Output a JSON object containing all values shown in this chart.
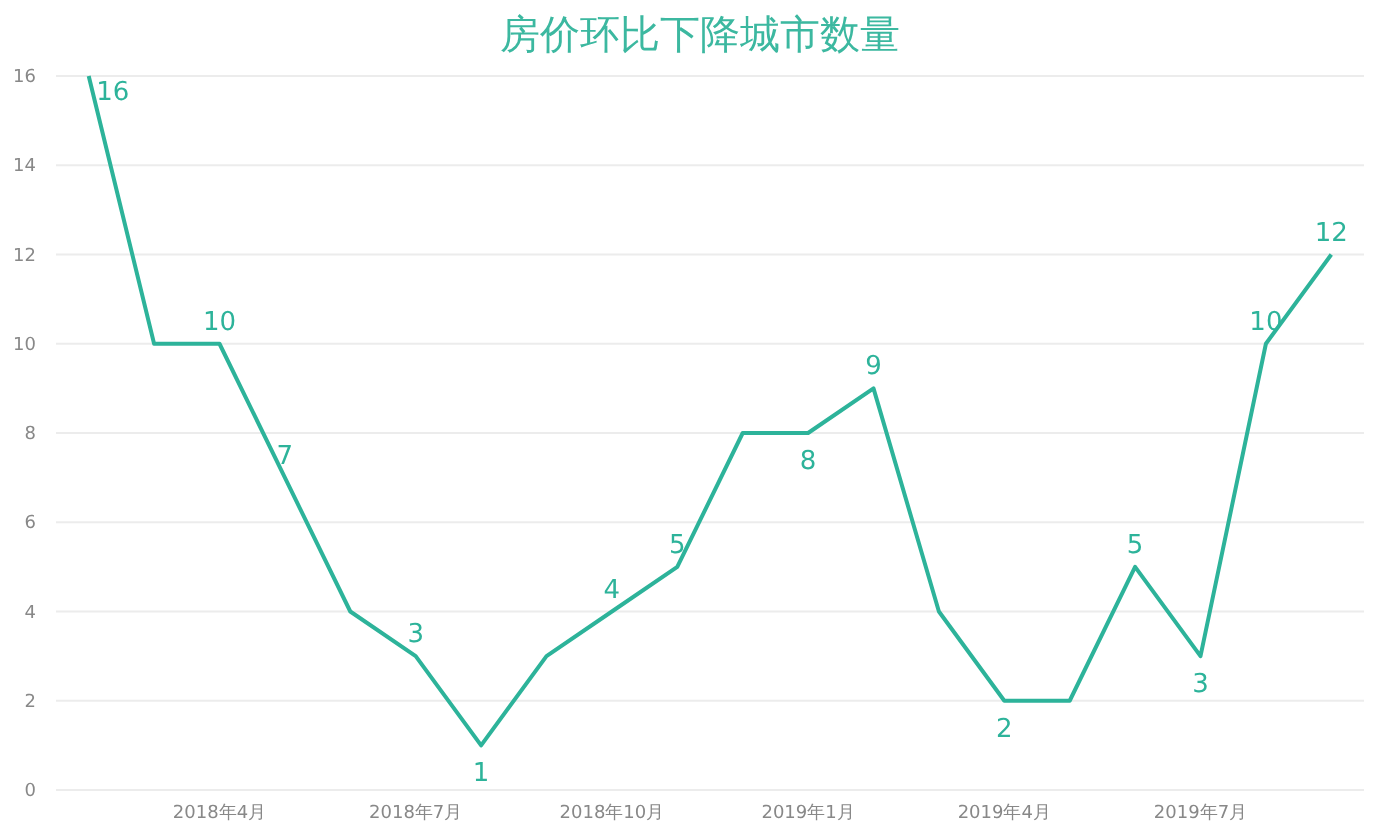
{
  "chart_data": {
    "type": "line",
    "title": "房价环比下降城市数量",
    "categories": [
      null,
      null,
      "2018年4月",
      null,
      null,
      "2018年7月",
      null,
      null,
      "2018年10月",
      null,
      null,
      "2019年1月",
      null,
      null,
      "2019年4月",
      null,
      null,
      "2019年7月",
      null,
      null
    ],
    "series": [
      {
        "color": "#2db39a",
        "values": [
          16,
          10,
          10,
          7,
          4,
          3,
          1,
          3,
          4,
          5,
          8,
          8,
          9,
          4,
          2,
          2,
          5,
          3,
          10,
          12
        ],
        "value_labels": [
          "16",
          null,
          "10",
          "7",
          null,
          "3",
          "1",
          null,
          "4",
          "5",
          null,
          "8",
          "9",
          null,
          "2",
          null,
          "5",
          "3",
          "10",
          "12"
        ]
      }
    ],
    "ylim": [
      0,
      16
    ],
    "yticks": [
      0,
      2,
      4,
      6,
      8,
      10,
      12,
      14,
      16
    ],
    "grid": "y",
    "marker": "none",
    "line_style": "solid"
  }
}
